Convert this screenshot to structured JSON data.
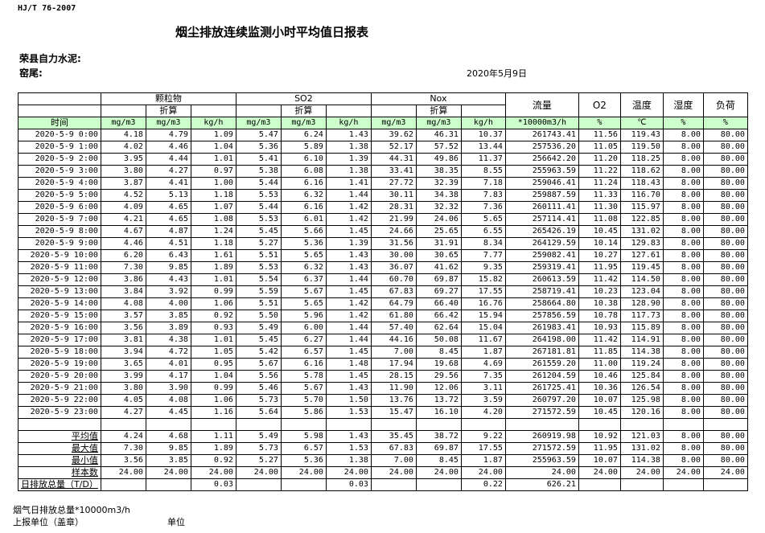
{
  "standard": "HJ/T  76-2007",
  "title": "烟尘排放连续监测小时平均值日报表",
  "company": "荣县自力水泥:",
  "kiln": "窑尾:",
  "date": "2020年5月9日",
  "header": {
    "groups": [
      "颗粒物",
      "SO2",
      "Nox"
    ],
    "converted": "折算",
    "flow": "流量",
    "o2": "O2",
    "temp": "温度",
    "humidity": "湿度",
    "load": "负荷",
    "time": "时间",
    "units": [
      "mg/m3",
      "mg/m3",
      "kg/h",
      "mg/m3",
      "mg/m3",
      "kg/h",
      "mg/m3",
      "mg/m3",
      "kg/h",
      "*10000m3/h",
      "%",
      "℃",
      "%",
      "%"
    ]
  },
  "rows": [
    [
      "2020-5-9 0:00",
      "4.18",
      "4.79",
      "1.09",
      "5.47",
      "6.24",
      "1.43",
      "39.62",
      "46.31",
      "10.37",
      "261743.41",
      "11.56",
      "119.43",
      "8.00",
      "80.00"
    ],
    [
      "2020-5-9 1:00",
      "4.02",
      "4.46",
      "1.04",
      "5.36",
      "5.89",
      "1.38",
      "52.17",
      "57.52",
      "13.44",
      "257536.20",
      "11.05",
      "119.50",
      "8.00",
      "80.00"
    ],
    [
      "2020-5-9 2:00",
      "3.95",
      "4.44",
      "1.01",
      "5.41",
      "6.10",
      "1.39",
      "44.31",
      "49.86",
      "11.37",
      "256642.20",
      "11.20",
      "118.25",
      "8.00",
      "80.00"
    ],
    [
      "2020-5-9 3:00",
      "3.80",
      "4.27",
      "0.97",
      "5.38",
      "6.08",
      "1.38",
      "33.41",
      "38.35",
      "8.55",
      "255963.59",
      "11.22",
      "118.62",
      "8.00",
      "80.00"
    ],
    [
      "2020-5-9 4:00",
      "3.87",
      "4.41",
      "1.00",
      "5.44",
      "6.16",
      "1.41",
      "27.72",
      "32.39",
      "7.18",
      "259046.41",
      "11.24",
      "118.43",
      "8.00",
      "80.00"
    ],
    [
      "2020-5-9 5:00",
      "4.52",
      "5.13",
      "1.18",
      "5.53",
      "6.32",
      "1.44",
      "30.11",
      "34.38",
      "7.83",
      "259887.59",
      "11.33",
      "116.70",
      "8.00",
      "80.00"
    ],
    [
      "2020-5-9 6:00",
      "4.09",
      "4.65",
      "1.07",
      "5.44",
      "6.16",
      "1.42",
      "28.31",
      "32.32",
      "7.36",
      "260111.41",
      "11.30",
      "115.97",
      "8.00",
      "80.00"
    ],
    [
      "2020-5-9 7:00",
      "4.21",
      "4.65",
      "1.08",
      "5.53",
      "6.01",
      "1.42",
      "21.99",
      "24.06",
      "5.65",
      "257114.41",
      "11.08",
      "122.85",
      "8.00",
      "80.00"
    ],
    [
      "2020-5-9 8:00",
      "4.67",
      "4.87",
      "1.24",
      "5.45",
      "5.66",
      "1.45",
      "24.66",
      "25.65",
      "6.55",
      "265426.19",
      "10.45",
      "131.02",
      "8.00",
      "80.00"
    ],
    [
      "2020-5-9 9:00",
      "4.46",
      "4.51",
      "1.18",
      "5.27",
      "5.36",
      "1.39",
      "31.56",
      "31.91",
      "8.34",
      "264129.59",
      "10.14",
      "129.83",
      "8.00",
      "80.00"
    ],
    [
      "2020-5-9 10:00",
      "6.20",
      "6.43",
      "1.61",
      "5.51",
      "5.65",
      "1.43",
      "30.00",
      "30.65",
      "7.77",
      "259082.41",
      "10.27",
      "127.61",
      "8.00",
      "80.00"
    ],
    [
      "2020-5-9 11:00",
      "7.30",
      "9.85",
      "1.89",
      "5.53",
      "6.32",
      "1.43",
      "36.07",
      "41.62",
      "9.35",
      "259319.41",
      "11.95",
      "119.45",
      "8.00",
      "80.00"
    ],
    [
      "2020-5-9 12:00",
      "3.86",
      "4.43",
      "1.01",
      "5.54",
      "6.37",
      "1.44",
      "60.70",
      "69.87",
      "15.82",
      "260613.59",
      "11.42",
      "114.50",
      "8.00",
      "80.00"
    ],
    [
      "2020-5-9 13:00",
      "3.84",
      "3.92",
      "0.99",
      "5.59",
      "5.67",
      "1.45",
      "67.83",
      "69.27",
      "17.55",
      "258719.41",
      "10.23",
      "123.04",
      "8.00",
      "80.00"
    ],
    [
      "2020-5-9 14:00",
      "4.08",
      "4.00",
      "1.06",
      "5.51",
      "5.65",
      "1.42",
      "64.79",
      "66.40",
      "16.76",
      "258664.80",
      "10.38",
      "128.90",
      "8.00",
      "80.00"
    ],
    [
      "2020-5-9 15:00",
      "3.57",
      "3.85",
      "0.92",
      "5.50",
      "5.96",
      "1.42",
      "61.80",
      "66.42",
      "15.94",
      "257856.59",
      "10.78",
      "117.73",
      "8.00",
      "80.00"
    ],
    [
      "2020-5-9 16:00",
      "3.56",
      "3.89",
      "0.93",
      "5.49",
      "6.00",
      "1.44",
      "57.40",
      "62.64",
      "15.04",
      "261983.41",
      "10.93",
      "115.89",
      "8.00",
      "80.00"
    ],
    [
      "2020-5-9 17:00",
      "3.81",
      "4.38",
      "1.01",
      "5.45",
      "6.27",
      "1.44",
      "44.16",
      "50.08",
      "11.67",
      "264198.00",
      "11.42",
      "114.91",
      "8.00",
      "80.00"
    ],
    [
      "2020-5-9 18:00",
      "3.94",
      "4.72",
      "1.05",
      "5.42",
      "6.57",
      "1.45",
      "7.00",
      "8.45",
      "1.87",
      "267181.81",
      "11.85",
      "114.38",
      "8.00",
      "80.00"
    ],
    [
      "2020-5-9 19:00",
      "3.65",
      "4.01",
      "0.95",
      "5.67",
      "6.16",
      "1.48",
      "17.94",
      "19.68",
      "4.69",
      "261559.20",
      "11.00",
      "119.24",
      "8.00",
      "80.00"
    ],
    [
      "2020-5-9 20:00",
      "3.99",
      "4.17",
      "1.04",
      "5.56",
      "5.78",
      "1.45",
      "28.15",
      "29.56",
      "7.35",
      "261204.59",
      "10.46",
      "125.84",
      "8.00",
      "80.00"
    ],
    [
      "2020-5-9 21:00",
      "3.80",
      "3.90",
      "0.99",
      "5.46",
      "5.67",
      "1.43",
      "11.90",
      "12.06",
      "3.11",
      "261725.41",
      "10.36",
      "126.54",
      "8.00",
      "80.00"
    ],
    [
      "2020-5-9 22:00",
      "4.05",
      "4.08",
      "1.06",
      "5.73",
      "5.70",
      "1.50",
      "13.76",
      "13.72",
      "3.59",
      "260797.20",
      "10.07",
      "125.98",
      "8.00",
      "80.00"
    ],
    [
      "2020-5-9 23:00",
      "4.27",
      "4.45",
      "1.16",
      "5.64",
      "5.86",
      "1.53",
      "15.47",
      "16.10",
      "4.20",
      "271572.59",
      "10.45",
      "120.16",
      "8.00",
      "80.00"
    ]
  ],
  "stats": [
    [
      "平均值",
      "4.24",
      "4.68",
      "1.11",
      "5.49",
      "5.98",
      "1.43",
      "35.45",
      "38.72",
      "9.22",
      "260919.98",
      "10.92",
      "121.03",
      "8.00",
      "80.00"
    ],
    [
      "最大值",
      "7.30",
      "9.85",
      "1.89",
      "5.73",
      "6.57",
      "1.53",
      "67.83",
      "69.87",
      "17.55",
      "271572.59",
      "11.95",
      "131.02",
      "8.00",
      "80.00"
    ],
    [
      "最小值",
      "3.56",
      "3.85",
      "0.92",
      "5.27",
      "5.36",
      "1.38",
      "7.00",
      "8.45",
      "1.87",
      "255963.59",
      "10.07",
      "114.38",
      "8.00",
      "80.00"
    ],
    [
      "样本数",
      "24.00",
      "24.00",
      "24.00",
      "24.00",
      "24.00",
      "24.00",
      "24.00",
      "24.00",
      "24.00",
      "24.00",
      "24.00",
      "24.00",
      "24.00",
      "24.00"
    ]
  ],
  "daily_total": [
    "日排放总量（T/D）",
    "",
    "",
    "0.03",
    "",
    "",
    "0.03",
    "",
    "",
    "0.22",
    "626.21",
    "",
    "",
    "",
    ""
  ],
  "footer": {
    "flue_total": "烟气日排放总量*10000m3/h",
    "reporter": "上报单位（盖章）",
    "unit": "单位"
  },
  "colors": {
    "header_band": "#ccffcc"
  }
}
